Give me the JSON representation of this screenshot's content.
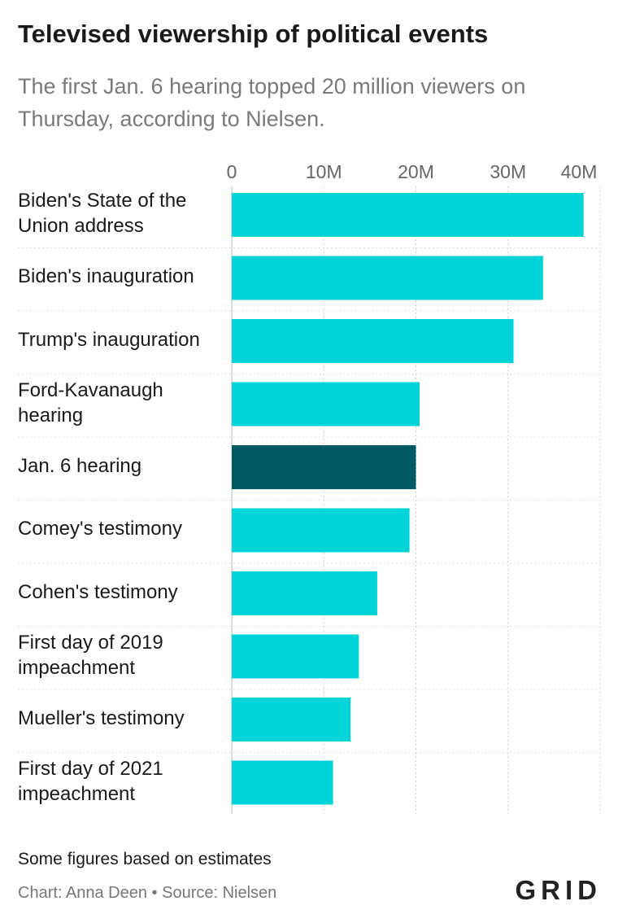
{
  "title": "Televised viewership of political events",
  "subtitle": "The first Jan. 6 hearing topped 20 million viewers on Thursday, according to Nielsen.",
  "note": "Some figures based on estimates",
  "credit": "Chart: Anna Deen • Source: Nielsen",
  "logo": "GRID",
  "colors": {
    "bar": "#00d4d8",
    "highlight": "#005a63",
    "grid": "#cccccc"
  },
  "chart_data": {
    "type": "bar",
    "orientation": "horizontal",
    "categories": [
      "Biden's State of the Union address",
      "Biden's inauguration",
      "Trump's inauguration",
      "Ford-Kavanaugh hearing",
      "Jan. 6 hearing",
      "Comey's testimony",
      "Cohen's testimony",
      "First day of 2019 impeachment",
      "Mueller's testimony",
      "First day of 2021 impeachment"
    ],
    "values": [
      38.2,
      33.8,
      30.6,
      20.4,
      20.0,
      19.3,
      15.8,
      13.8,
      12.9,
      11.0
    ],
    "highlight_index": 4,
    "xlim": [
      0,
      40
    ],
    "ticks": [
      0,
      10,
      20,
      30,
      40
    ],
    "tick_labels": [
      "0",
      "10M",
      "20M",
      "30M",
      "40M"
    ],
    "grid": true
  }
}
